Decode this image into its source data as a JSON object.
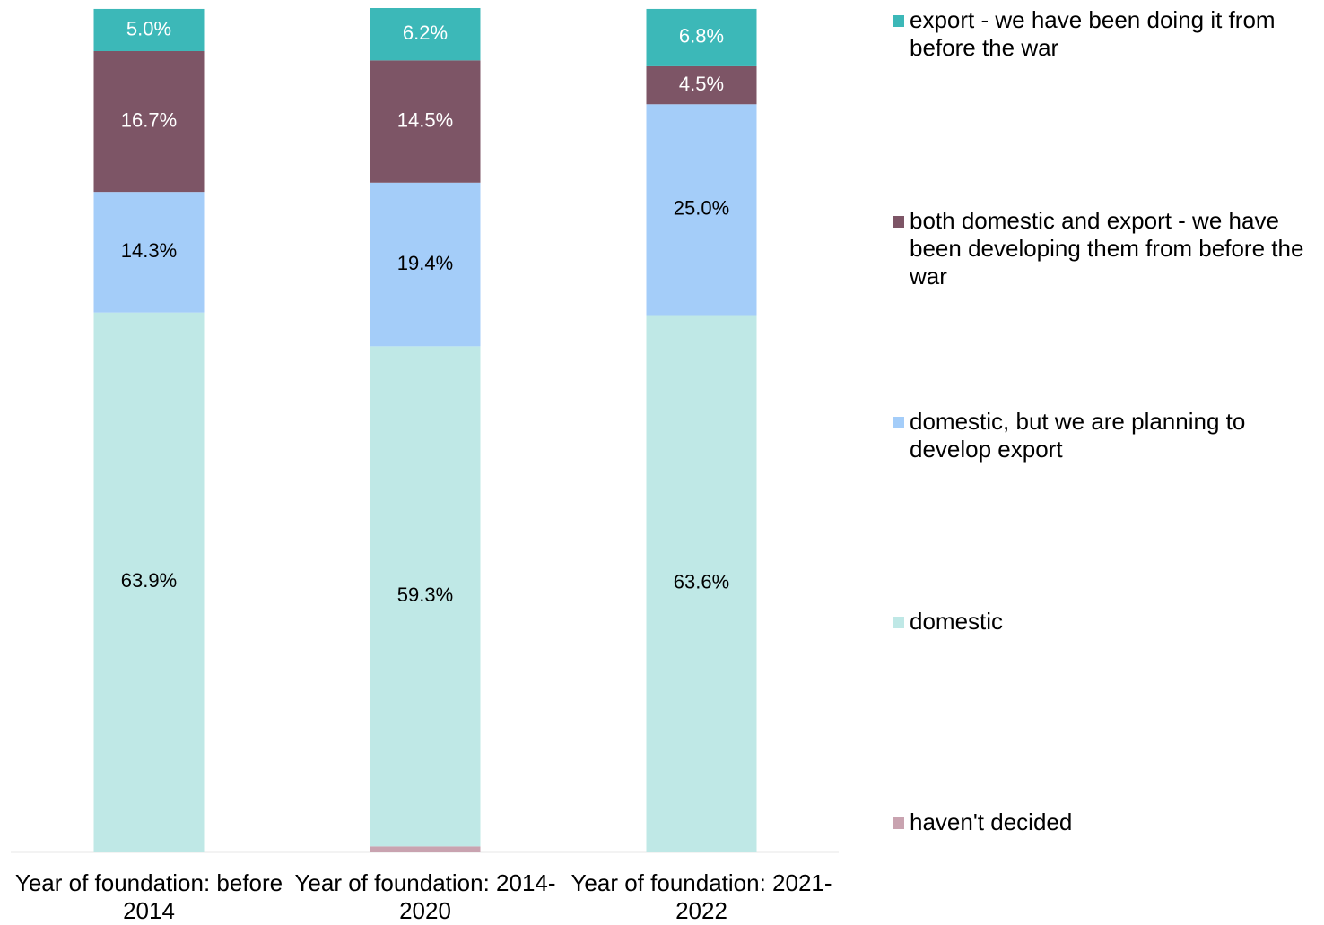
{
  "chart_data": {
    "type": "stacked_bar",
    "categories": [
      "Year of foundation: before 2014",
      "Year of foundation: 2014-2020",
      "Year of foundation: 2021-2022"
    ],
    "ylim": [
      0,
      100
    ],
    "series": [
      {
        "name": "haven't decided",
        "color": "#c9a3b0",
        "text_color": "#000000",
        "values": [
          0,
          0.6,
          0
        ],
        "value_labels": [
          null,
          null,
          null
        ]
      },
      {
        "name": "domestic",
        "color": "#bfe8e6",
        "text_color": "#000000",
        "values": [
          63.9,
          59.3,
          63.6
        ],
        "value_labels": [
          "63.9%",
          "59.3%",
          "63.6%"
        ]
      },
      {
        "name": "domestic, but we are planning to develop export",
        "color": "#a4cdf9",
        "text_color": "#000000",
        "values": [
          14.3,
          19.4,
          25.0
        ],
        "value_labels": [
          "14.3%",
          "19.4%",
          "25.0%"
        ]
      },
      {
        "name": "both domestic and export - we have been developing them from before the war",
        "color": "#7d5566",
        "text_color": "#ffffff",
        "values": [
          16.7,
          14.5,
          4.5
        ],
        "value_labels": [
          "16.7%",
          "14.5%",
          "4.5%"
        ]
      },
      {
        "name": "export - we have been doing it from before the war",
        "color": "#3cb8b8",
        "text_color": "#ffffff",
        "values": [
          5.0,
          6.2,
          6.8
        ],
        "value_labels": [
          "5.0%",
          "6.2%",
          "6.8%"
        ]
      }
    ]
  }
}
